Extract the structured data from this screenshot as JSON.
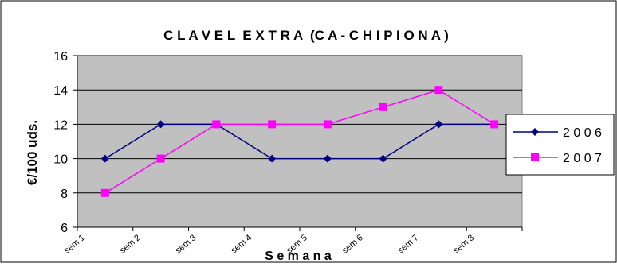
{
  "chart_data": {
    "type": "line",
    "title": "C L A V E L  E X T R A  (C A - C H I P I O N A )",
    "xlabel": "S e m a n a",
    "ylabel": "€/100 uds.",
    "categories": [
      "sem 1",
      "sem 2",
      "sem 3",
      "sem 4",
      "sem 5",
      "sem 6",
      "sem 7",
      "sem 8"
    ],
    "ylim": [
      6,
      16
    ],
    "yticks": [
      "6",
      "8",
      "10",
      "12",
      "14",
      "16"
    ],
    "grid": true,
    "legend_position": "right",
    "plot_background": "#c0c0c0",
    "series": [
      {
        "name": "2 0 0 6",
        "values": [
          10,
          12,
          12,
          10,
          10,
          10,
          12,
          12
        ],
        "color": "#000080",
        "marker": "diamond"
      },
      {
        "name": "2 0 0 7",
        "values": [
          8,
          10,
          12,
          12,
          12,
          13,
          14,
          12
        ],
        "color": "#ff00ff",
        "marker": "square"
      }
    ]
  }
}
